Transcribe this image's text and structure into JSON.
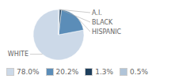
{
  "chart_data": {
    "type": "pie",
    "categories": [
      "WHITE",
      "HISPANIC",
      "BLACK",
      "A.I."
    ],
    "values": [
      78.0,
      20.2,
      1.3,
      0.5
    ],
    "value_labels": [
      "78.0%",
      "20.2%",
      "1.3%",
      "0.5%"
    ],
    "colors": [
      "#ccd9e8",
      "#5b8db8",
      "#1e3f5c",
      "#b0c4d8"
    ],
    "legend": "lower left"
  }
}
